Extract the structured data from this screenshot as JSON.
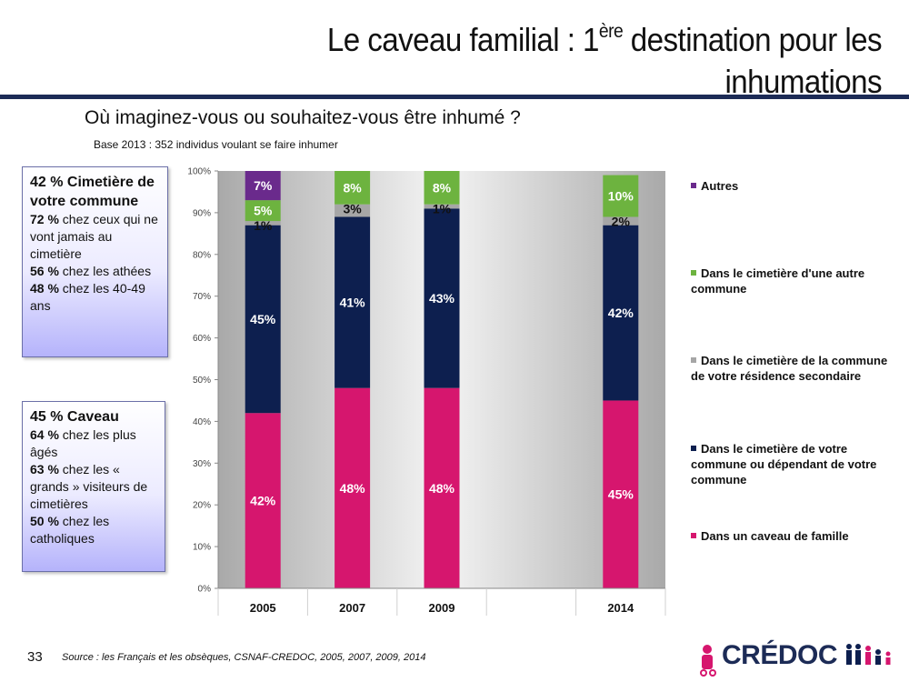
{
  "title": {
    "line1_pre": "Le caveau familial : 1",
    "line1_sup": "ère",
    "line1_post": " destination pour les",
    "line2": "inhumations"
  },
  "question": "Où imaginez-vous ou souhaitez-vous être inhumé ?",
  "base_note": "Base 2013 : 352 individus voulant se faire inhumer",
  "callouts": [
    {
      "head_pct": "42 %",
      "head_text": " Cimetière de votre commune",
      "lines": [
        {
          "pct": "72 %",
          "text": " chez ceux qui ne vont jamais au cimetière"
        },
        {
          "pct": "56 %",
          "text": " chez les athées"
        },
        {
          "pct": "48 %",
          "text": " chez les 40-49 ans"
        }
      ]
    },
    {
      "head_pct": "45 %",
      "head_text": " Caveau",
      "lines": [
        {
          "pct": "64 %",
          "text": " chez les plus âgés"
        },
        {
          "pct": "63 %",
          "text": " chez les « grands » visiteurs de  cimetières"
        },
        {
          "pct": "50 %",
          "text": " chez les catholiques"
        }
      ]
    }
  ],
  "chart_data": {
    "type": "bar",
    "stacked": true,
    "categories": [
      "2005",
      "2007",
      "2009",
      "",
      "2014"
    ],
    "ylim": [
      0,
      100
    ],
    "y_ticks": [
      "0%",
      "10%",
      "20%",
      "30%",
      "40%",
      "50%",
      "60%",
      "70%",
      "80%",
      "90%",
      "100%"
    ],
    "series": [
      {
        "name": "Dans un caveau de famille",
        "color": "#d6166e",
        "values": [
          42,
          48,
          48,
          null,
          45
        ],
        "labels": [
          "42%",
          "48%",
          "48%",
          "",
          "45%"
        ]
      },
      {
        "name": "Dans le cimetière de votre commune ou dépendant de votre commune",
        "color": "#0d1f4f",
        "values": [
          45,
          41,
          43,
          null,
          42
        ],
        "labels": [
          "45%",
          "41%",
          "43%",
          "",
          "42%"
        ]
      },
      {
        "name": "Dans le cimetière de la commune de votre résidence secondaire",
        "color": "#a6a6a6",
        "values": [
          1,
          3,
          1,
          null,
          2
        ],
        "labels": [
          "1%",
          "3%",
          "1%",
          "",
          "2%"
        ]
      },
      {
        "name": "Dans le cimetière d'une autre commune",
        "color": "#6db33f",
        "values": [
          5,
          8,
          8,
          null,
          10
        ],
        "labels": [
          "5%",
          "8%",
          "8%",
          "",
          "10%"
        ]
      },
      {
        "name": "Autres",
        "color": "#6a2a8c",
        "values": [
          7,
          0,
          0,
          null,
          0
        ],
        "labels": [
          "7%",
          "",
          "",
          "",
          ""
        ]
      }
    ],
    "legend_position": "right",
    "legend": [
      {
        "label": "Autres",
        "color": "#6a2a8c"
      },
      {
        "label": "Dans le cimetière d'une autre commune",
        "color": "#6db33f"
      },
      {
        "label": "Dans le cimetière de la commune de votre résidence secondaire",
        "color": "#a6a6a6"
      },
      {
        "label": "Dans le cimetière de votre commune ou dépendant de votre commune",
        "color": "#0d1f4f"
      },
      {
        "label": "Dans un caveau de famille",
        "color": "#d6166e"
      }
    ]
  },
  "footer": {
    "page_number": "33",
    "source": "Source : les Français et les obsèques, CSNAF-CREDOC, 2005, 2007, 2009, 2014",
    "logo_text": "CRÉDOC"
  }
}
